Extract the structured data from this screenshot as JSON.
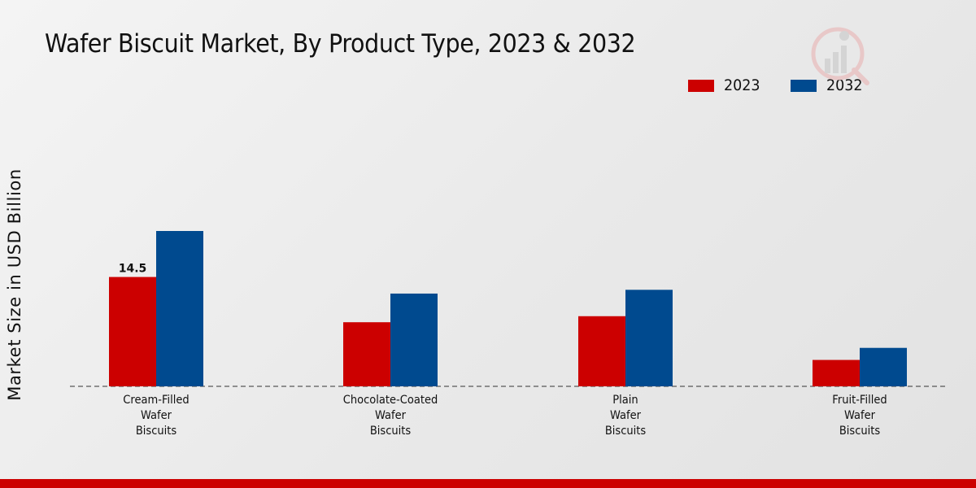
{
  "chart_data": {
    "type": "bar",
    "title": "Wafer Biscuit Market, By Product Type, 2023 & 2032",
    "xlabel": "",
    "ylabel": "Market Size in USD Billion",
    "categories": [
      "Cream-Filled\nWafer\nBiscuits",
      "Chocolate-Coated\nWafer\nBiscuits",
      "Plain\nWafer\nBiscuits",
      "Fruit-Filled\nWafer\nBiscuits"
    ],
    "series": [
      {
        "name": "2023",
        "color": "#cc0000",
        "values": [
          14.5,
          8.5,
          9.3,
          3.5
        ]
      },
      {
        "name": "2032",
        "color": "#004a8f",
        "values": [
          20.6,
          12.3,
          12.8,
          5.1
        ]
      }
    ],
    "data_labels": [
      {
        "series": 0,
        "index": 0,
        "text": "14.5"
      }
    ],
    "ylim": [
      0,
      30
    ],
    "legend_position": "top-right",
    "grid": false
  },
  "brand": {
    "accent": "#cc0000"
  }
}
